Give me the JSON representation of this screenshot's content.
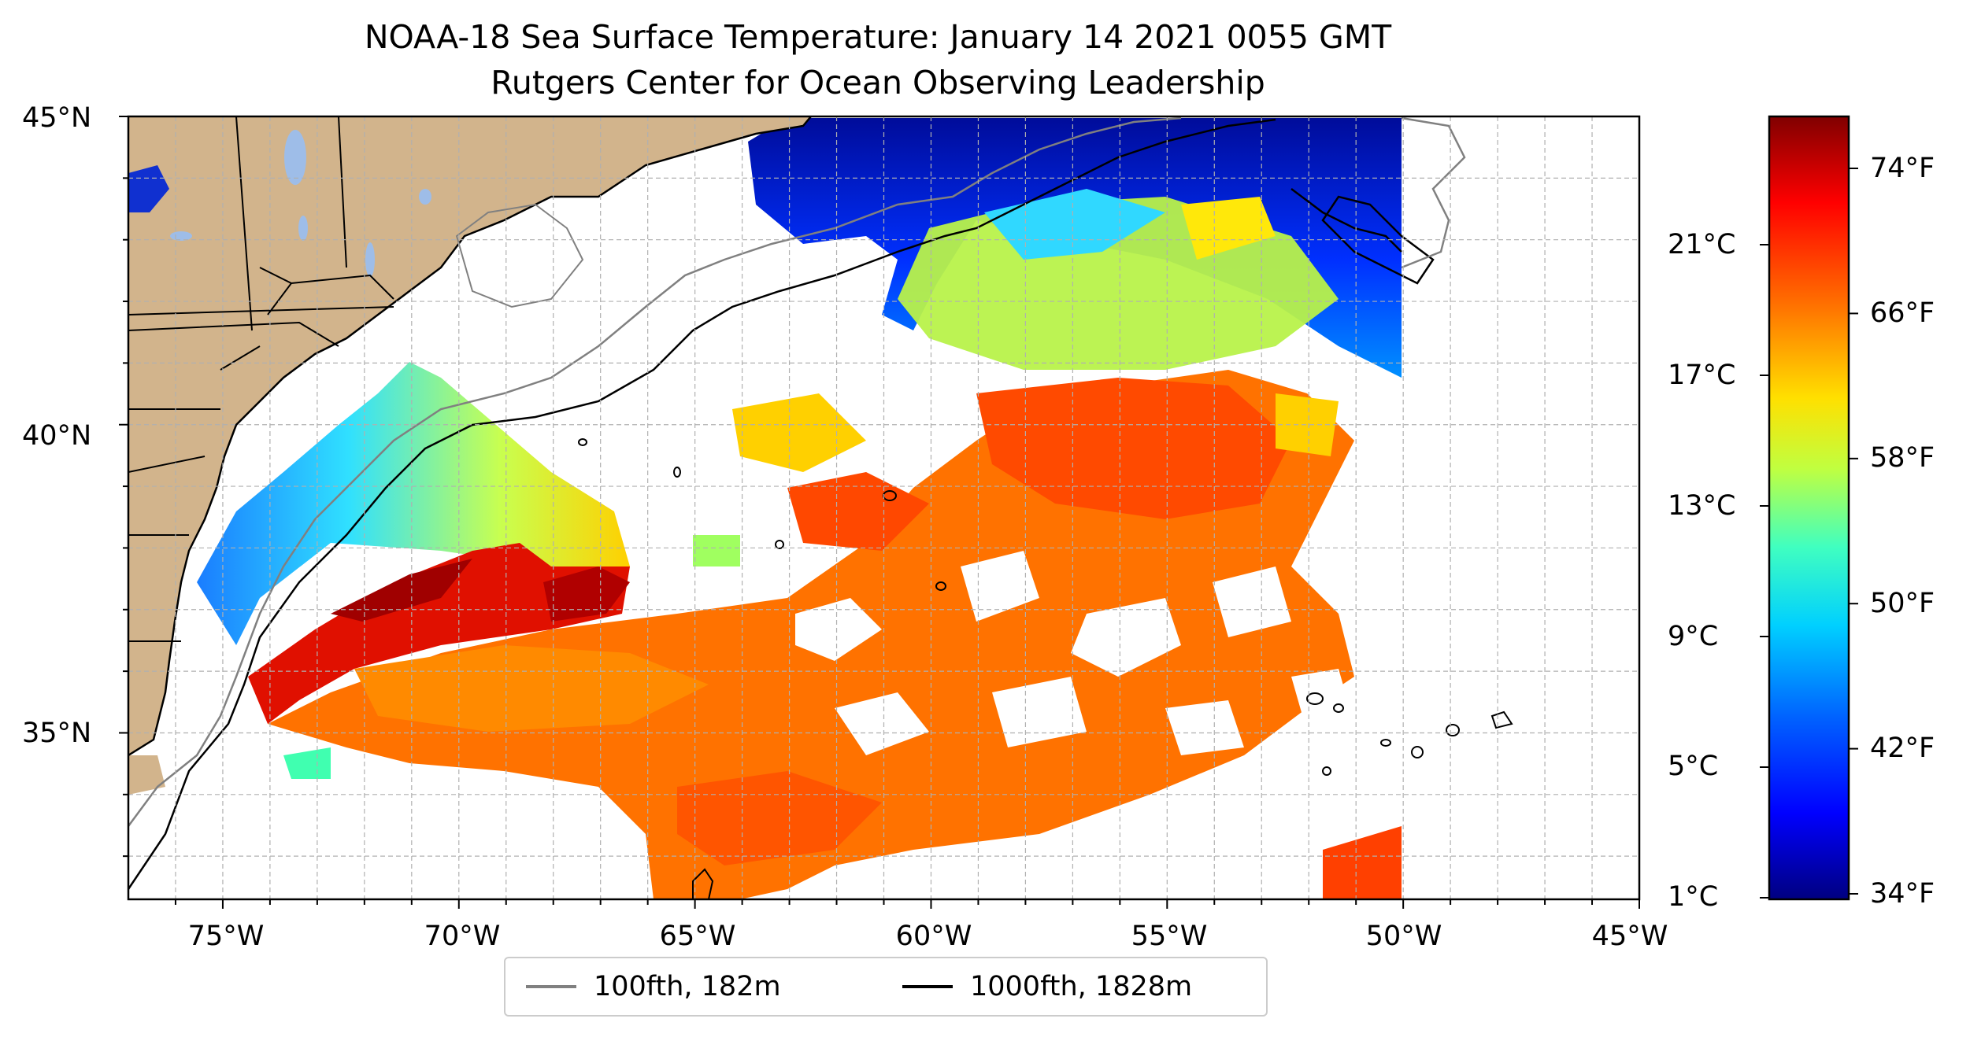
{
  "title": {
    "line1": "NOAA-18 Sea Surface Temperature: January 14 2021 0055 GMT",
    "line2": "Rutgers Center for Ocean Observing Leadership"
  },
  "map": {
    "lon_range": [
      -77,
      -45
    ],
    "lat_range": [
      32.3,
      45
    ],
    "x_ticks": [
      {
        "lon": -75,
        "label": "75°W"
      },
      {
        "lon": -70,
        "label": "70°W"
      },
      {
        "lon": -65,
        "label": "65°W"
      },
      {
        "lon": -60,
        "label": "60°W"
      },
      {
        "lon": -55,
        "label": "55°W"
      },
      {
        "lon": -50,
        "label": "50°W"
      },
      {
        "lon": -45,
        "label": "45°W"
      }
    ],
    "y_ticks": [
      {
        "lat": 45,
        "label": "45°N"
      },
      {
        "lat": 40,
        "label": "40°N"
      },
      {
        "lat": 35,
        "label": "35°N"
      }
    ],
    "gridlines": true,
    "land_color": "#d2b48c",
    "lake_color": "#9ebde8"
  },
  "colorbar": {
    "colormap": "jet",
    "celsius_labels": [
      "21°C",
      "17°C",
      "13°C",
      "9°C",
      "5°C",
      "1°C"
    ],
    "fahrenheit_labels": [
      "74°F",
      "66°F",
      "58°F",
      "50°F",
      "42°F",
      "34°F"
    ],
    "colors": [
      "#800000",
      "#ff0000",
      "#ff8000",
      "#ffff00",
      "#80ff80",
      "#00ffff",
      "#0080ff",
      "#0000ff",
      "#000080"
    ]
  },
  "legend": {
    "items": [
      {
        "label": "100fth, 182m",
        "color": "#808080"
      },
      {
        "label": "1000fth, 1828m",
        "color": "#000000"
      }
    ]
  }
}
